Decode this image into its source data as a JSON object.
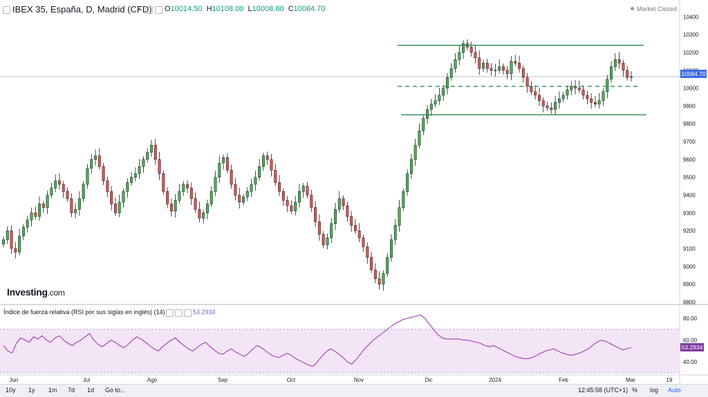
{
  "header": {
    "symbol": "IBEX 35, España, D, Madrid (CFD)",
    "open_label": "O",
    "open": "10014.50",
    "high_label": "H",
    "high": "10108.00",
    "low_label": "L",
    "low": "10008.80",
    "close_label": "C",
    "close": "10064.70",
    "market_status": "Market Closed"
  },
  "logo": {
    "brand": "Investing",
    "domain": ".com"
  },
  "rsi_panel": {
    "title": "Índice de fuerza relativa (RSI por sus siglas en inglés) (14)",
    "value": "53.2934"
  },
  "price_tag": "10064.70",
  "rsi_tag": "53.2934",
  "bottom_bar": {
    "ranges": [
      "10y",
      "1y",
      "1m",
      "7d",
      "1d"
    ],
    "goto": "Go to...",
    "time": "12:45:58 (UTC+1)",
    "percent": "%",
    "log": "log",
    "auto": "Auto"
  },
  "colors": {
    "up": "#4caf50",
    "down": "#e0554f",
    "lines": "#2e8b57",
    "rsi_line": "#9c27b0",
    "rsi_band": "#f3e5f5",
    "price_tag": "#3d6ce8",
    "rsi_tag": "#7e3aa2"
  },
  "chart_data": [
    {
      "type": "candlestick",
      "title": "IBEX 35, España, D, Madrid (CFD)",
      "x_ticks": [
        "Jun",
        "Jul",
        "Ago",
        "Sep",
        "Oct",
        "Nov",
        "Dic",
        "2024",
        "Feb",
        "Mar",
        "19"
      ],
      "y_ticks": [
        8800,
        8900,
        9000,
        9100,
        9200,
        9300,
        9400,
        9500,
        9600,
        9700,
        9800,
        9900,
        10000,
        10100,
        10200,
        10300,
        10400
      ],
      "ylim": [
        8790,
        10440
      ],
      "close_series": [
        9150,
        9200,
        9100,
        9080,
        9170,
        9220,
        9260,
        9300,
        9280,
        9350,
        9330,
        9400,
        9440,
        9480,
        9460,
        9420,
        9380,
        9300,
        9320,
        9380,
        9460,
        9550,
        9600,
        9620,
        9560,
        9480,
        9420,
        9350,
        9300,
        9360,
        9420,
        9470,
        9500,
        9520,
        9560,
        9600,
        9640,
        9680,
        9600,
        9520,
        9420,
        9350,
        9310,
        9370,
        9420,
        9460,
        9440,
        9380,
        9320,
        9270,
        9300,
        9350,
        9420,
        9500,
        9580,
        9610,
        9540,
        9460,
        9400,
        9360,
        9390,
        9420,
        9460,
        9500,
        9560,
        9620,
        9600,
        9540,
        9470,
        9420,
        9370,
        9340,
        9310,
        9360,
        9420,
        9450,
        9400,
        9330,
        9250,
        9180,
        9120,
        9160,
        9240,
        9320,
        9380,
        9340,
        9280,
        9230,
        9200,
        9160,
        9110,
        9050,
        8980,
        8930,
        8900,
        8960,
        9050,
        9150,
        9230,
        9330,
        9420,
        9520,
        9600,
        9680,
        9760,
        9830,
        9880,
        9910,
        9930,
        9960,
        10000,
        10060,
        10110,
        10160,
        10200,
        10250,
        10230,
        10200,
        10170,
        10110,
        10140,
        10110,
        10100,
        10100,
        10120,
        10100,
        10080,
        10150,
        10140,
        10110,
        10060,
        10010,
        9980,
        9960,
        9930,
        9900,
        9890,
        9880,
        9920,
        9940,
        9960,
        9990,
        10010,
        10000,
        9990,
        9960,
        9940,
        9920,
        9910,
        9930,
        9980,
        10050,
        10120,
        10160,
        10140,
        10100,
        10060,
        10064.7
      ],
      "resistance": 10240,
      "support": 9850,
      "mid_dashed": 10010,
      "last_price": 10064.7
    },
    {
      "type": "line",
      "title": "Índice de fuerza relativa (RSI por sus siglas en inglés) (14)",
      "y_ticks": [
        40,
        60,
        80
      ],
      "ylim": [
        30,
        92
      ],
      "overbought": 70,
      "oversold": 30,
      "values": [
        55,
        50,
        48,
        57,
        62,
        60,
        58,
        63,
        61,
        64,
        60,
        58,
        62,
        64,
        60,
        57,
        55,
        58,
        60,
        63,
        66,
        60,
        56,
        54,
        57,
        60,
        58,
        55,
        53,
        56,
        60,
        63,
        61,
        58,
        55,
        52,
        50,
        54,
        57,
        60,
        62,
        58,
        55,
        52,
        50,
        53,
        56,
        58,
        54,
        51,
        48,
        47,
        50,
        52,
        49,
        47,
        45,
        48,
        52,
        55,
        53,
        50,
        47,
        45,
        44,
        46,
        48,
        46,
        43,
        41,
        39,
        37,
        36,
        40,
        45,
        49,
        52,
        50,
        47,
        44,
        40,
        38,
        42,
        47,
        52,
        56,
        60,
        63,
        66,
        69,
        72,
        75,
        77,
        79,
        80,
        81,
        82,
        83,
        80,
        75,
        70,
        65,
        62,
        61,
        61,
        61,
        61,
        60,
        60,
        59,
        58,
        57,
        55,
        54,
        55,
        53,
        51,
        49,
        47,
        45,
        44,
        43,
        43,
        44,
        46,
        48,
        50,
        51,
        52,
        50,
        48,
        47,
        46,
        47,
        48,
        50,
        52,
        55,
        58,
        60,
        59,
        57,
        55,
        53,
        51,
        52,
        53.29
      ],
      "last_value": 53.2934
    }
  ]
}
